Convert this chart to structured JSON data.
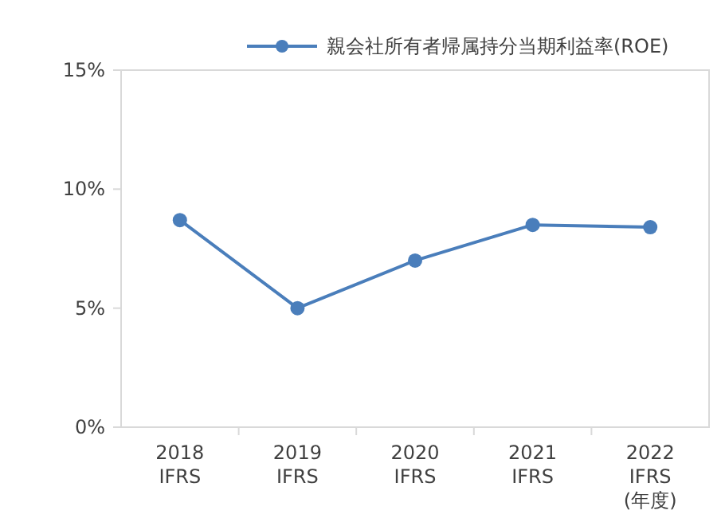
{
  "chart_data": {
    "type": "line",
    "categories": [
      "2018\nIFRS",
      "2019\nIFRS",
      "2020\nIFRS",
      "2021\nIFRS",
      "2022\nIFRS\n(年度)"
    ],
    "series": [
      {
        "name": "親会社所有者帰属持分当期利益率(ROE)",
        "color": "#4a7ebb",
        "values": [
          8.7,
          5.0,
          7.0,
          8.5,
          8.4
        ]
      }
    ],
    "ylim": [
      0,
      15
    ],
    "yticks": [
      {
        "value": 0,
        "label": "0%"
      },
      {
        "value": 5,
        "label": "5%"
      },
      {
        "value": 10,
        "label": "10%"
      },
      {
        "value": 15,
        "label": "15%"
      }
    ],
    "marker": "circle",
    "line_style": "solid",
    "legend": "top",
    "grid": false
  }
}
